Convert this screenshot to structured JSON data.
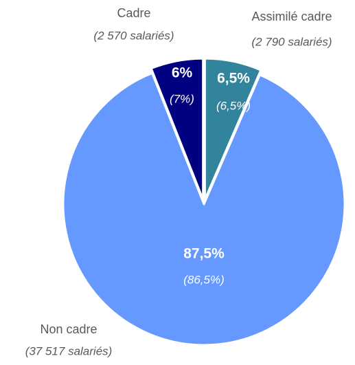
{
  "chart_data": {
    "type": "pie",
    "categories": [
      "Cadre",
      "Assimilé cadre",
      "Non cadre"
    ],
    "values": [
      6,
      6.5,
      87.5
    ],
    "value_labels": [
      "6%",
      "6,5%",
      "87,5%"
    ],
    "previous_values": [
      7,
      6.5,
      86.5
    ],
    "previous_value_labels": [
      "(7%)",
      "(6,5%)",
      "(86,5%)"
    ],
    "counts": [
      2570,
      2790,
      37517
    ],
    "count_labels": [
      "(2 570 salariés)",
      "(2 790 salariés)",
      "(37 517 salariés)"
    ],
    "colors": [
      "#000080",
      "#31849b",
      "#6699ff"
    ],
    "explode": [
      true,
      true,
      false
    ]
  }
}
